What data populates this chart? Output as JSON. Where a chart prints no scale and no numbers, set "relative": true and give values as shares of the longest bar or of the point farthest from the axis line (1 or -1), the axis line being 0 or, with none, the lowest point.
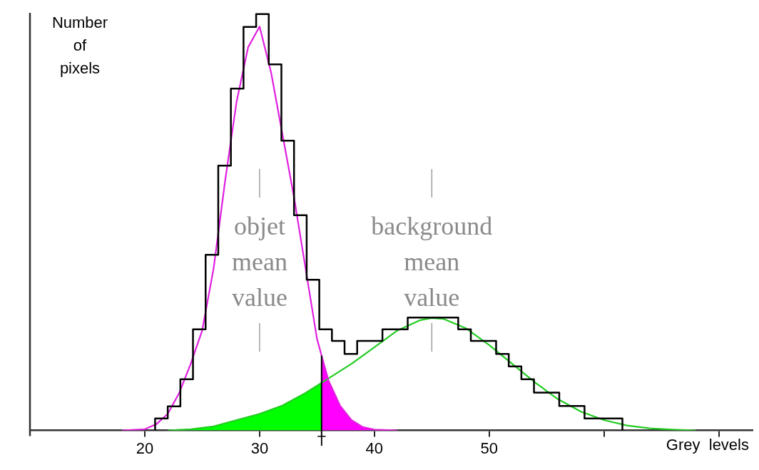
{
  "chart_data": {
    "type": "histogram",
    "relative": true,
    "xlabel": "Grey  levels",
    "ylabel": "Number\nof\npixels",
    "xlim": [
      10,
      73
    ],
    "xticks": [
      20,
      30,
      40,
      50,
      {
        "value": 60,
        "label": null
      },
      {
        "value": 70,
        "label": null
      }
    ],
    "grid": false,
    "legend": false,
    "marker": "none",
    "series": [
      {
        "type": "histogram",
        "color": "#000000",
        "bins": [
          20.9,
          22,
          23.1,
          24.2,
          25.3,
          26.4,
          27.5,
          28.6,
          29.7,
          30.8,
          31.9,
          33,
          34.1,
          35.2,
          36.3,
          37.4,
          38.5,
          39.6,
          40.7,
          41.8,
          42.9,
          44,
          45.1,
          46.2,
          47.3,
          48.4,
          49.5,
          50.6,
          51.7,
          52.8,
          53.9,
          55,
          56.1,
          57.2,
          58.3,
          59.4,
          60.5,
          61.6
        ],
        "values": [
          0.029,
          0.058,
          0.123,
          0.243,
          0.422,
          0.636,
          0.821,
          0.969,
          1.0,
          0.879,
          0.696,
          0.517,
          0.362,
          0.243,
          0.215,
          0.184,
          0.215,
          0.215,
          0.243,
          0.243,
          0.271,
          0.271,
          0.271,
          0.271,
          0.243,
          0.215,
          0.215,
          0.184,
          0.154,
          0.123,
          0.091,
          0.091,
          0.059,
          0.059,
          0.029,
          0.029,
          0.029
        ]
      },
      {
        "type": "line",
        "color": "#e020e0",
        "x": [
          18,
          20,
          21,
          22,
          23,
          24,
          25,
          26,
          27,
          28,
          29,
          30,
          31,
          32,
          33,
          34,
          35,
          36,
          37,
          38,
          39,
          40,
          42
        ],
        "values": [
          0,
          0.003,
          0.015,
          0.04,
          0.09,
          0.16,
          0.24,
          0.39,
          0.6,
          0.79,
          0.92,
          0.97,
          0.86,
          0.71,
          0.56,
          0.39,
          0.22,
          0.12,
          0.06,
          0.025,
          0.008,
          0.002,
          0
        ]
      },
      {
        "type": "line",
        "color": "#22cc22",
        "x": [
          22,
          24,
          26,
          28,
          30,
          32,
          34,
          36,
          38,
          40,
          42,
          44,
          45,
          46,
          48,
          50,
          52,
          54,
          56,
          58,
          60,
          62,
          64,
          66,
          68
        ],
        "values": [
          0,
          0.003,
          0.01,
          0.025,
          0.04,
          0.06,
          0.09,
          0.125,
          0.16,
          0.2,
          0.24,
          0.265,
          0.27,
          0.268,
          0.245,
          0.205,
          0.16,
          0.115,
          0.075,
          0.045,
          0.025,
          0.012,
          0.005,
          0.002,
          0
        ]
      }
    ],
    "ref_lines": [
      {
        "axis": "x",
        "value": 35.4,
        "label": "T",
        "color": "#000000"
      }
    ],
    "annotations": [
      "objet\nmean\nvalue",
      "background\nmean\nvalue"
    ]
  }
}
